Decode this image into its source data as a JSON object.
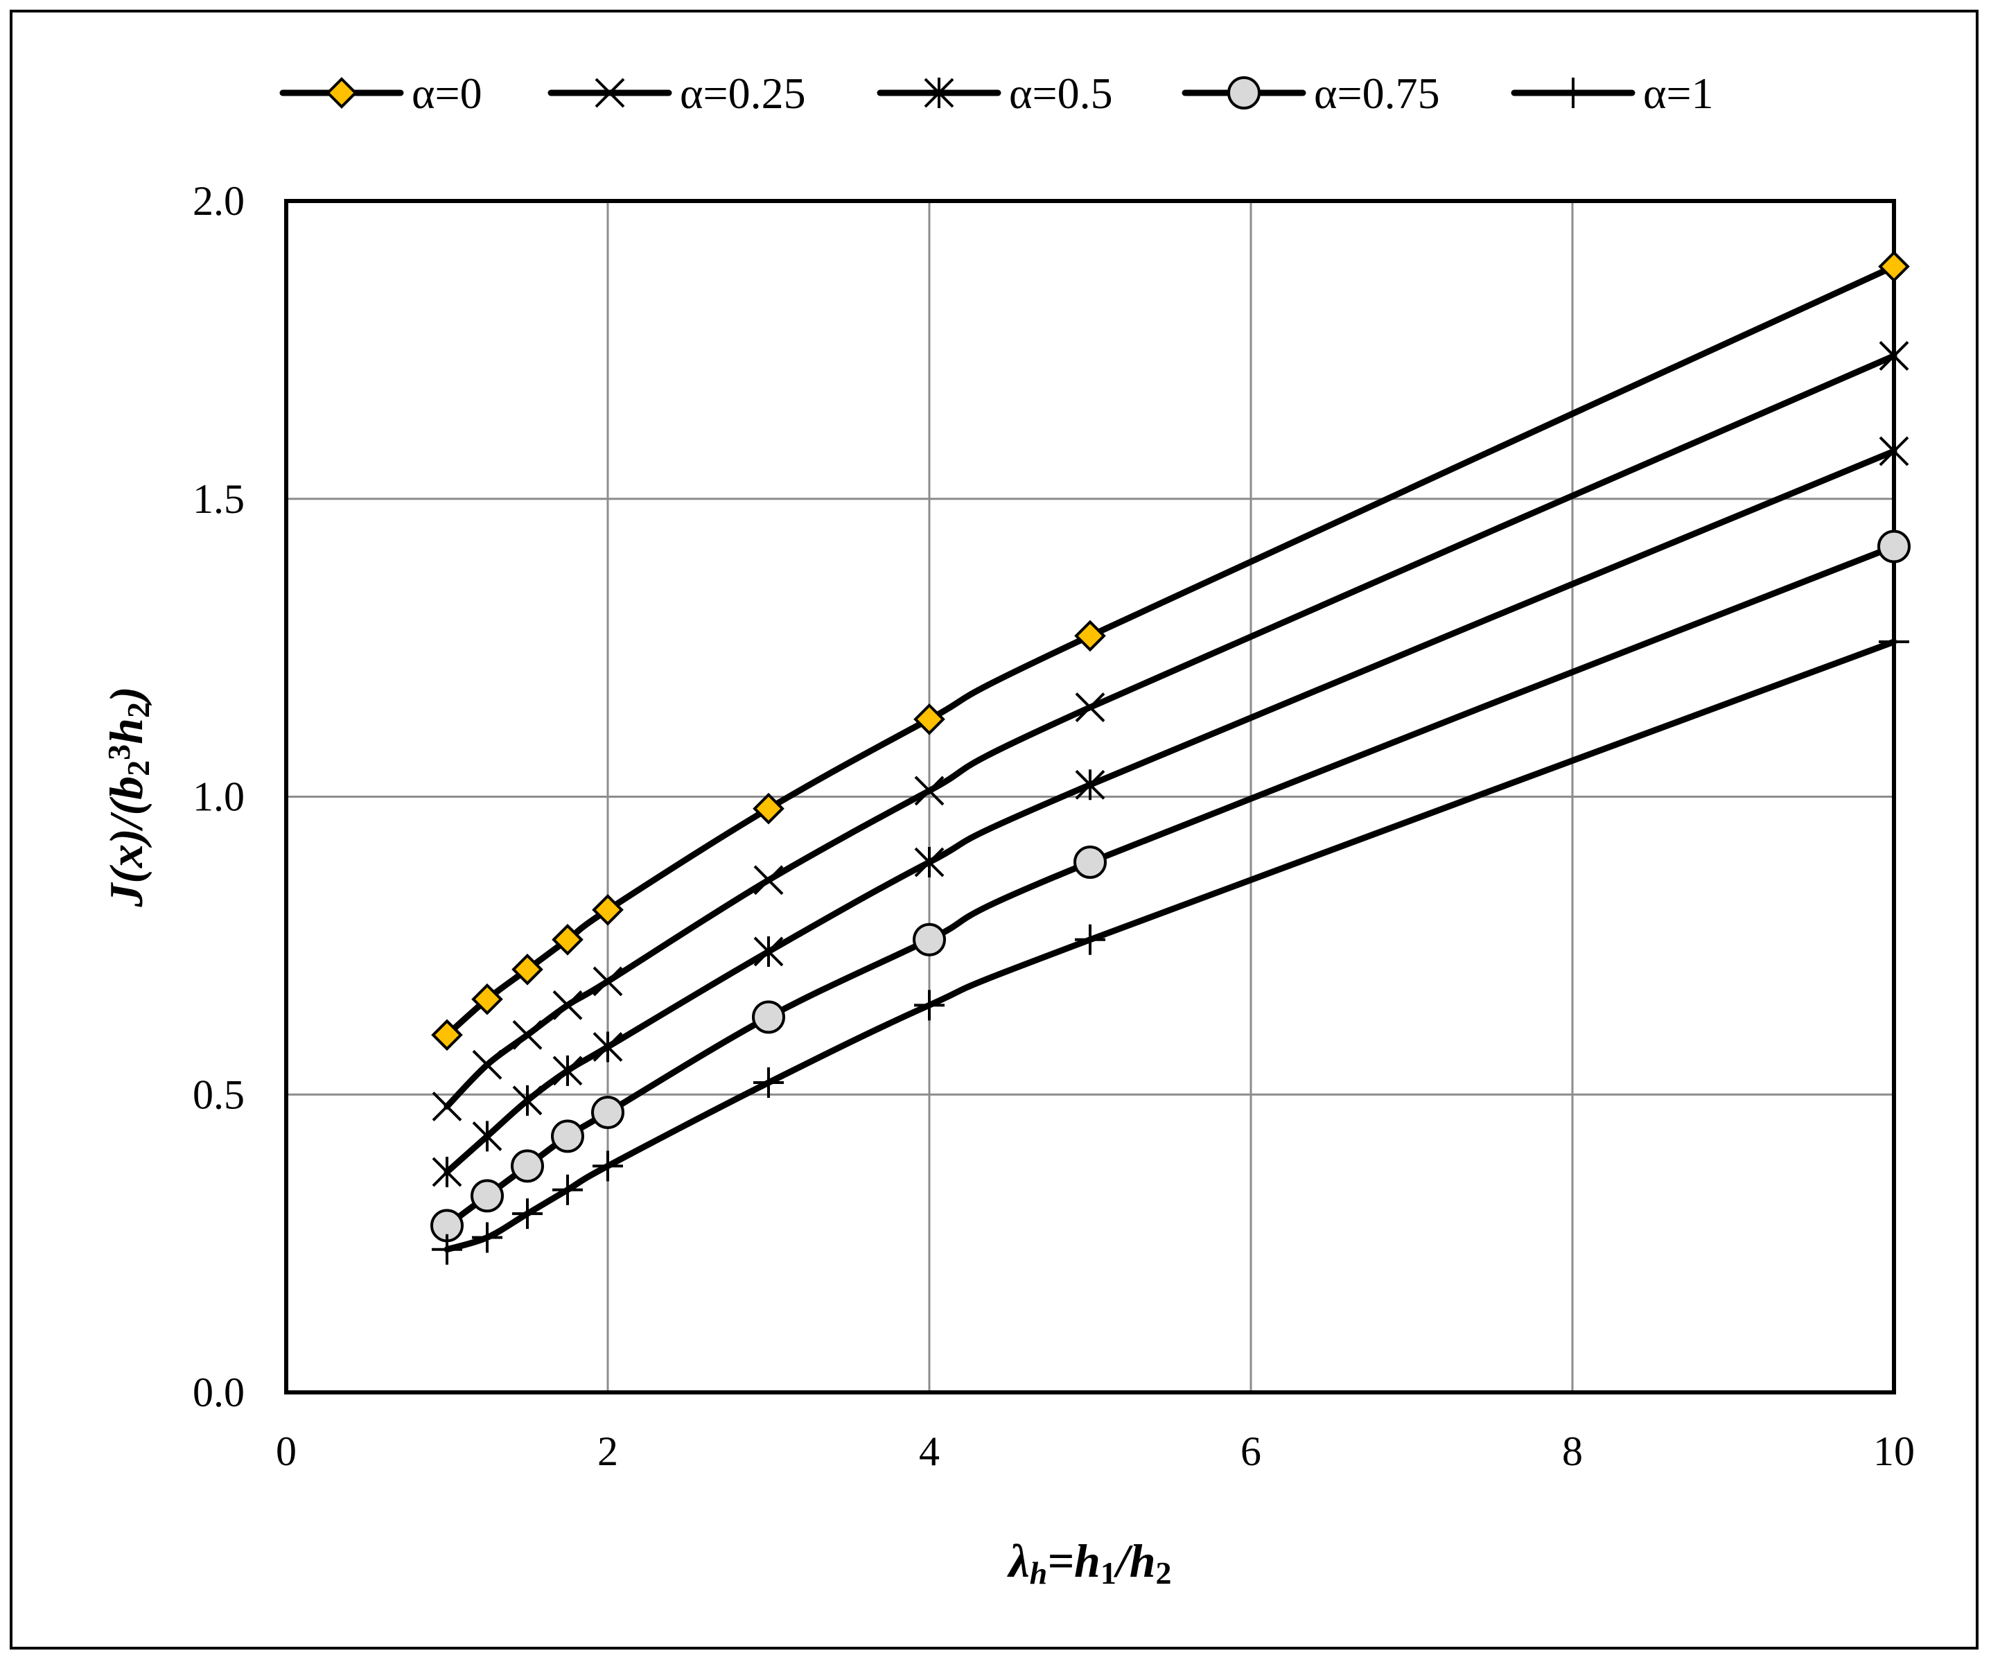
{
  "chart_data": {
    "type": "line",
    "title": "",
    "xlabel": {
      "parts": [
        {
          "t": "λ"
        },
        {
          "t": "h",
          "sub": true
        },
        {
          "t": "=h"
        },
        {
          "t": "1",
          "sub": true,
          "upright": true
        },
        {
          "t": "/h"
        },
        {
          "t": "2",
          "sub": true,
          "upright": true
        }
      ]
    },
    "ylabel": {
      "parts": [
        {
          "t": "J(x)/(b"
        },
        {
          "t": "2",
          "sub": true,
          "upright": true
        },
        {
          "t": "3",
          "sup": true,
          "upright": true
        },
        {
          "t": "h"
        },
        {
          "t": "2",
          "sub": true,
          "upright": true
        },
        {
          "t": ")"
        }
      ]
    },
    "xlim": [
      0,
      10
    ],
    "ylim": [
      0,
      2
    ],
    "xticks": [
      0,
      2,
      4,
      6,
      8,
      10
    ],
    "yticks": [
      0.0,
      0.5,
      1.0,
      1.5,
      2.0
    ],
    "xtick_labels": [
      "0",
      "2",
      "4",
      "6",
      "8",
      "10"
    ],
    "ytick_labels": [
      "0.0",
      "0.5",
      "1.0",
      "1.5",
      "2.0"
    ],
    "grid": true,
    "legend_position": "top",
    "x": [
      1,
      1.25,
      1.5,
      1.75,
      2,
      3,
      4,
      5,
      10
    ],
    "series": [
      {
        "name": "α=0",
        "marker": "diamond",
        "marker_color": "#FFC000",
        "values": [
          0.6,
          0.66,
          0.71,
          0.76,
          0.81,
          0.98,
          1.13,
          1.27,
          1.89
        ]
      },
      {
        "name": "α=0.25",
        "marker": "x",
        "marker_color": "#000000",
        "values": [
          0.48,
          0.55,
          0.6,
          0.65,
          0.69,
          0.86,
          1.01,
          1.15,
          1.74
        ]
      },
      {
        "name": "α=0.5",
        "marker": "star",
        "marker_color": "#000000",
        "values": [
          0.37,
          0.43,
          0.49,
          0.54,
          0.58,
          0.74,
          0.89,
          1.02,
          1.58
        ]
      },
      {
        "name": "α=0.75",
        "marker": "circle",
        "marker_color": "#D9D9D9",
        "values": [
          0.28,
          0.33,
          0.38,
          0.43,
          0.47,
          0.63,
          0.76,
          0.89,
          1.42
        ]
      },
      {
        "name": "α=1",
        "marker": "plus",
        "marker_color": "#000000",
        "values": [
          0.24,
          0.26,
          0.3,
          0.34,
          0.38,
          0.52,
          0.65,
          0.76,
          1.26
        ]
      }
    ]
  }
}
